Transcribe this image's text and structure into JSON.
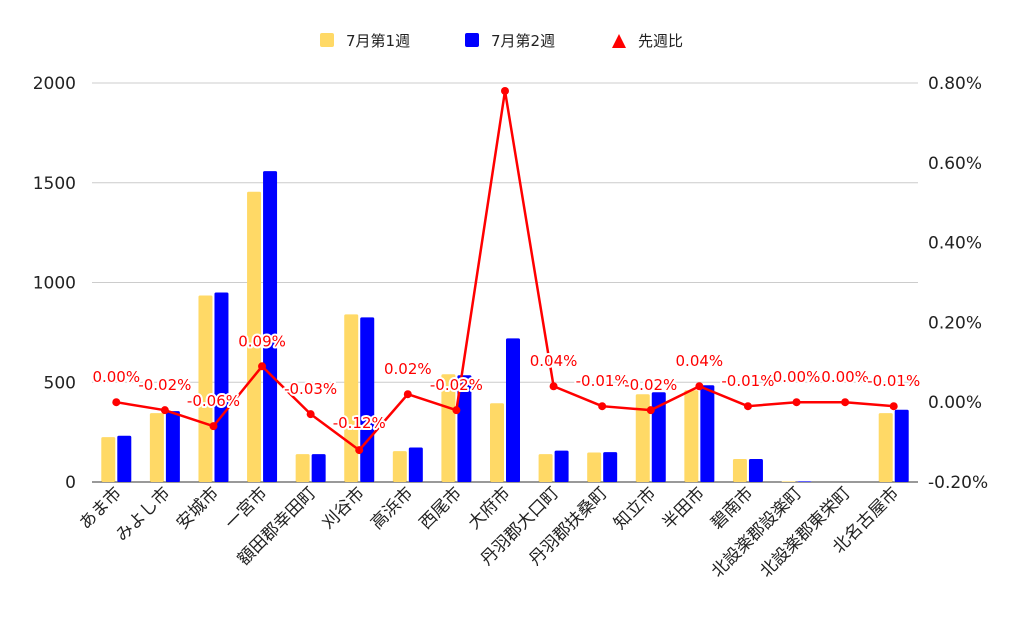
{
  "chart_data": {
    "type": "bar",
    "categories": [
      "あま市",
      "みよし市",
      "安城市",
      "一宮市",
      "額田郡幸田町",
      "刈谷市",
      "高浜市",
      "西尾市",
      "大府市",
      "丹羽郡大口町",
      "丹羽郡扶桑町",
      "知立市",
      "半田市",
      "碧南市",
      "北設楽郡設楽町",
      "北設楽郡東栄町",
      "北名古屋市"
    ],
    "series": [
      {
        "name": "7月第1週",
        "type": "bar",
        "axis": "left",
        "color": "#ffd966",
        "values": [
          225,
          345,
          935,
          1455,
          140,
          840,
          155,
          540,
          395,
          140,
          148,
          440,
          460,
          115,
          3,
          0,
          345
        ]
      },
      {
        "name": "7月第2週",
        "type": "bar",
        "axis": "left",
        "color": "#0000ff",
        "values": [
          232,
          355,
          950,
          1558,
          140,
          825,
          173,
          535,
          720,
          157,
          150,
          450,
          485,
          115,
          3,
          0,
          362
        ]
      },
      {
        "name": "先週比",
        "type": "line",
        "axis": "right",
        "color": "#ff0000",
        "values": [
          0.0,
          -0.0002,
          -0.0006,
          0.0009,
          -0.0003,
          -0.0012,
          0.0002,
          -0.0002,
          0.0078,
          0.0004,
          -0.0001,
          -0.0002,
          0.0004,
          -0.0001,
          0.0,
          0.0,
          -0.0001
        ],
        "labels": [
          "0.00%",
          "-0.02%",
          "-0.06%",
          "0.09%",
          "-0.03%",
          "-0.12%",
          "0.02%",
          "-0.02%",
          "",
          "0.04%",
          "-0.01%",
          "-0.02%",
          "0.04%",
          "-0.01%",
          "0.00%",
          "0.00%",
          "-0.01%"
        ]
      }
    ],
    "y_left": {
      "min": 0,
      "max": 2000,
      "ticks": [
        "0",
        "500",
        "1000",
        "1500",
        "2000"
      ]
    },
    "y_right": {
      "min": -0.002,
      "max": 0.008,
      "ticks": [
        "-0.20%",
        "0.00%",
        "0.20%",
        "0.40%",
        "0.60%",
        "0.80%"
      ]
    },
    "grid": true,
    "legend_position": "top"
  },
  "legend": {
    "items": [
      {
        "label": "7月第1週",
        "marker": "square",
        "color": "#ffd966"
      },
      {
        "label": "7月第2週",
        "marker": "square",
        "color": "#0000ff"
      },
      {
        "label": "先週比",
        "marker": "triangle",
        "color": "#ff0000"
      }
    ]
  }
}
